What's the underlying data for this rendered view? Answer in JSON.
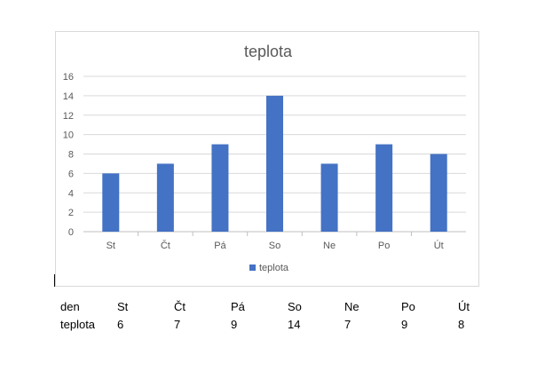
{
  "chart_data": {
    "type": "bar",
    "title": "teplota",
    "categories": [
      "St",
      "Čt",
      "Pá",
      "So",
      "Ne",
      "Po",
      "Út"
    ],
    "series": [
      {
        "name": "teplota",
        "values": [
          6,
          7,
          9,
          14,
          7,
          9,
          8
        ],
        "color": "#4472C4"
      }
    ],
    "ylim": [
      0,
      16
    ],
    "yticks": [
      0,
      2,
      4,
      6,
      8,
      10,
      12,
      14,
      16
    ],
    "grid": true,
    "legend_position": "bottom"
  },
  "table": {
    "header_label": "den",
    "row_label": "teplota",
    "days": [
      "St",
      "Čt",
      "Pá",
      "So",
      "Ne",
      "Po",
      "Út"
    ],
    "values": [
      "6",
      "7",
      "9",
      "14",
      "7",
      "9",
      "8"
    ]
  }
}
